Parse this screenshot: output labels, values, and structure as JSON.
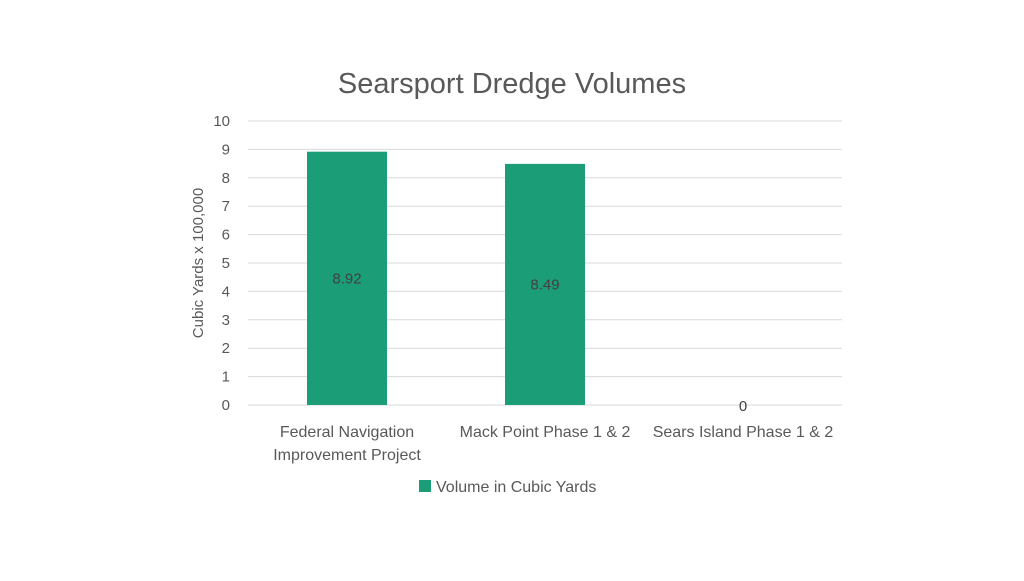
{
  "chart_data": {
    "type": "bar",
    "title": "Searsport Dredge Volumes",
    "xlabel": "",
    "ylabel": "Cubic Yards x 100,000",
    "ylim": [
      0,
      10
    ],
    "yticks": [
      0,
      1,
      2,
      3,
      4,
      5,
      6,
      7,
      8,
      9,
      10
    ],
    "categories": [
      [
        "Federal Navigation",
        "Improvement Project"
      ],
      [
        "Mack Point Phase 1 & 2"
      ],
      [
        "Sears Island Phase 1 & 2"
      ]
    ],
    "series": [
      {
        "name": "Volume in Cubic Yards",
        "color": "#1b9e77",
        "values": [
          8.92,
          8.49,
          0
        ],
        "data_labels": [
          "8.92",
          "8.49",
          "0"
        ]
      }
    ],
    "grid": true,
    "legend": "bottom"
  }
}
